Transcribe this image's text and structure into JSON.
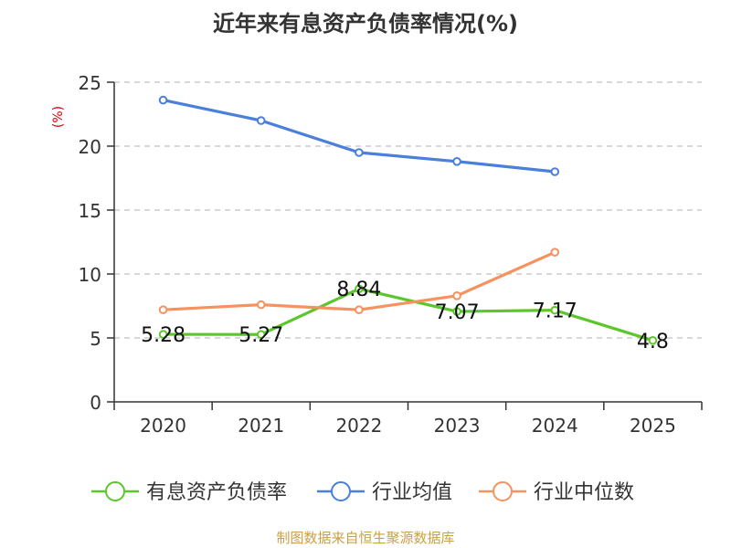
{
  "chart_data": {
    "type": "line",
    "title": "近年来有息资产负债率情况(%)",
    "ylabel": "(%)",
    "xlabel": "",
    "categories": [
      "2020",
      "2021",
      "2022",
      "2023",
      "2024",
      "2025"
    ],
    "ylim": [
      0,
      25
    ],
    "yticks": [
      "0",
      "5",
      "10",
      "15",
      "20",
      "25"
    ],
    "grid": true,
    "legend_position": "bottom",
    "series": [
      {
        "name": "有息资产负债率",
        "color": "#5cc62c",
        "values": [
          5.28,
          5.27,
          8.84,
          7.07,
          7.17,
          4.8
        ],
        "labels": [
          "5.28",
          "5.27",
          "8.84",
          "7.07",
          "7.17",
          "4.8"
        ]
      },
      {
        "name": "行业均值",
        "color": "#4a7fdb",
        "values": [
          23.6,
          22.0,
          19.5,
          18.8,
          18.0,
          null
        ]
      },
      {
        "name": "行业中位数",
        "color": "#f59260",
        "values": [
          7.2,
          7.6,
          7.2,
          8.3,
          11.7,
          null
        ]
      }
    ]
  },
  "colors": {
    "axis": "#333333",
    "grid": "#cccccc",
    "ylabel": "#d60000",
    "source": "#c8a04a"
  },
  "source_text": "制图数据来自恒生聚源数据库"
}
